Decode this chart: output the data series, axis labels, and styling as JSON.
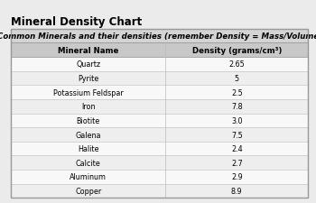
{
  "title": "Mineral Density Chart",
  "table_header": "Common Minerals and their densities (remember Density = Mass/Volume)",
  "col1_header": "Mineral Name",
  "col2_header": "Density (grams/cm³)",
  "minerals": [
    "Quartz",
    "Pyrite",
    "Potassium Feldspar",
    "Iron",
    "Biotite",
    "Galena",
    "Halite",
    "Calcite",
    "Aluminum",
    "Copper"
  ],
  "densities": [
    "2.65",
    "5",
    "2.5",
    "7.8",
    "3.0",
    "7.5",
    "2.4",
    "2.7",
    "2.9",
    "8.9"
  ],
  "page_bg": "#ebebeb",
  "table_bg": "#ffffff",
  "header_row_bg": "#d4d4d4",
  "col_header_bg": "#c8c8c8",
  "data_row_bg0": "#f8f8f8",
  "data_row_bg1": "#eeeeee",
  "border_color": "#999999",
  "inner_line_color": "#bbbbbb",
  "title_fontsize": 8.5,
  "table_header_fontsize": 6.2,
  "col_header_fontsize": 6.2,
  "row_fontsize": 5.8,
  "col_split": 0.52
}
